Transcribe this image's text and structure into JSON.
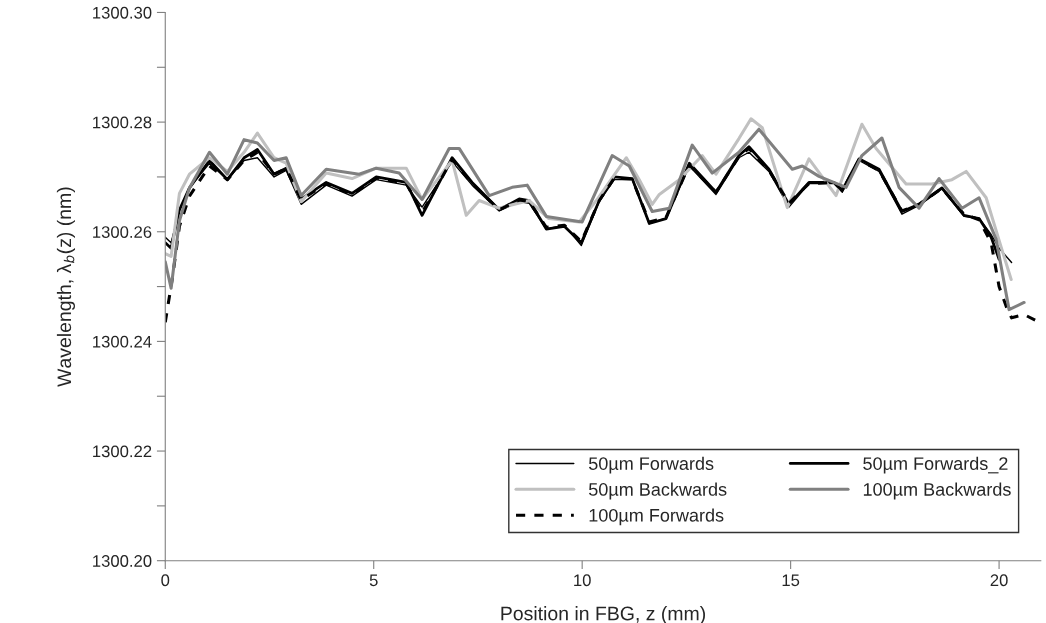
{
  "chart_data": {
    "type": "line",
    "xlabel": "Position in FBG, z (mm)",
    "ylabel": "Wavelength, λ$_{b}$(z) (nm)",
    "xlim": [
      0,
      21
    ],
    "xticks": [
      0,
      5,
      10,
      15,
      20
    ],
    "ylim": [
      1300.2,
      1300.3
    ],
    "yticks": [
      {
        "value": 1300.2,
        "label": "1300.20"
      },
      {
        "value": 1300.21,
        "label": null
      },
      {
        "value": 1300.22,
        "label": "1300.22"
      },
      {
        "value": 1300.23,
        "label": null
      },
      {
        "value": 1300.24,
        "label": "1300.24"
      },
      {
        "value": 1300.25,
        "label": null
      },
      {
        "value": 1300.26,
        "label": "1300.26"
      },
      {
        "value": 1300.27,
        "label": null
      },
      {
        "value": 1300.28,
        "label": "1300.28"
      },
      {
        "value": 1300.29,
        "label": null
      },
      {
        "value": 1300.3,
        "label": "1300.30"
      }
    ],
    "grid": false,
    "legend": "bottom right",
    "marker": "none",
    "series": [
      {
        "name": "50µm Forwards",
        "color": "#000000",
        "line_style": "solid",
        "x": [
          0,
          0.14,
          0.34,
          0.58,
          1.06,
          1.49,
          1.89,
          2.21,
          2.61,
          2.9,
          3.26,
          3.86,
          4.48,
          5.06,
          5.78,
          6.16,
          6.88,
          7.36,
          8.01,
          8.49,
          8.73,
          9.14,
          9.57,
          9.98,
          10.41,
          10.77,
          11.2,
          11.61,
          12.01,
          12.57,
          13.21,
          13.76,
          14.0,
          14.48,
          14.96,
          15.44,
          16.04,
          16.24,
          16.64,
          17.12,
          17.67,
          18.08,
          18.63,
          19.16,
          19.52,
          19.81,
          20.0,
          20.3
        ],
        "values": [
          1300.259,
          1300.258,
          1300.264,
          1300.268,
          1300.2725,
          1300.2695,
          1300.273,
          1300.2735,
          1300.27,
          1300.2712,
          1300.265,
          1300.2685,
          1300.2665,
          1300.2695,
          1300.2685,
          1300.2645,
          1300.2728,
          1300.2685,
          1300.2638,
          1300.2655,
          1300.2652,
          1300.2605,
          1300.2612,
          1300.2575,
          1300.2655,
          1300.2695,
          1300.2695,
          1300.2615,
          1300.2625,
          1300.272,
          1300.2668,
          1300.2735,
          1300.2745,
          1300.271,
          1300.2645,
          1300.2688,
          1300.2688,
          1300.2672,
          1300.273,
          1300.271,
          1300.2632,
          1300.2648,
          1300.2678,
          1300.2628,
          1300.2625,
          1300.2595,
          1300.257,
          1300.2544
        ]
      },
      {
        "name": "50µm Forwards_2",
        "color": "#000000",
        "line_style": "solid",
        "x": [
          0,
          0.14,
          0.34,
          0.58,
          1.06,
          1.49,
          1.89,
          2.21,
          2.61,
          2.9,
          3.26,
          3.86,
          4.48,
          5.06,
          5.78,
          6.16,
          6.88,
          7.36,
          8.01,
          8.49,
          8.73,
          9.14,
          9.57,
          9.98,
          10.41,
          10.77,
          11.2,
          11.61,
          12.01,
          12.57,
          13.21,
          13.76,
          14.0,
          14.48,
          14.96,
          15.44,
          16.04,
          16.24,
          16.64,
          17.12,
          17.67,
          18.08,
          18.63,
          19.16,
          19.52,
          19.81,
          20.0
        ],
        "values": [
          1300.258,
          1300.257,
          1300.264,
          1300.268,
          1300.273,
          1300.2695,
          1300.2735,
          1300.275,
          1300.2705,
          1300.2716,
          1300.266,
          1300.269,
          1300.267,
          1300.27,
          1300.269,
          1300.263,
          1300.2735,
          1300.269,
          1300.264,
          1300.266,
          1300.2657,
          1300.2605,
          1300.261,
          1300.258,
          1300.2657,
          1300.27,
          1300.2697,
          1300.2615,
          1300.2624,
          1300.2725,
          1300.2672,
          1300.2739,
          1300.2755,
          1300.2714,
          1300.265,
          1300.269,
          1300.269,
          1300.2676,
          1300.2733,
          1300.2714,
          1300.2637,
          1300.265,
          1300.268,
          1300.263,
          1300.2624,
          1300.259,
          1300.255
        ]
      },
      {
        "name": "50µm Backwards",
        "color": "#c0c0c0",
        "line_style": "solid",
        "x": [
          0,
          0.14,
          0.34,
          0.58,
          1.06,
          1.49,
          1.89,
          2.21,
          2.61,
          2.9,
          3.26,
          3.86,
          4.48,
          5.06,
          5.78,
          6.16,
          6.88,
          7.22,
          7.53,
          8.0,
          8.73,
          9.2,
          9.93,
          10.34,
          11.06,
          11.37,
          11.68,
          11.85,
          12.33,
          12.88,
          13.21,
          13.76,
          14.05,
          14.32,
          14.92,
          15.44,
          16.09,
          16.71,
          17.05,
          17.77,
          18.39,
          18.87,
          19.21,
          19.69,
          20.07,
          20.29
        ],
        "values": [
          1300.256,
          1300.2555,
          1300.267,
          1300.2705,
          1300.2735,
          1300.271,
          1300.2745,
          1300.278,
          1300.2735,
          1300.2725,
          1300.2655,
          1300.2707,
          1300.2697,
          1300.2716,
          1300.2716,
          1300.2659,
          1300.273,
          1300.263,
          1300.2657,
          1300.2643,
          1300.2657,
          1300.2624,
          1300.2618,
          1300.2657,
          1300.2735,
          1300.2695,
          1300.265,
          1300.2668,
          1300.2695,
          1300.2739,
          1300.2705,
          1300.277,
          1300.2806,
          1300.279,
          1300.2644,
          1300.2733,
          1300.2666,
          1300.2796,
          1300.2752,
          1300.2687,
          1300.2687,
          1300.2695,
          1300.271,
          1300.2662,
          1300.2567,
          1300.2513
        ]
      },
      {
        "name": "100µm Forwards",
        "color": "#000000",
        "line_style": "dashed",
        "x": [
          0,
          0.17,
          0.34,
          0.58,
          1.06,
          1.49,
          1.89,
          2.21,
          2.61,
          2.9,
          3.26,
          3.86,
          4.48,
          5.06,
          5.78,
          6.16,
          6.88,
          7.36,
          8.01,
          8.49,
          8.73,
          9.14,
          9.57,
          9.98,
          10.41,
          10.77,
          11.2,
          11.61,
          12.01,
          12.57,
          13.21,
          13.76,
          14.0,
          14.48,
          14.96,
          15.44,
          16.04,
          16.24,
          16.64,
          17.12,
          17.67,
          18.08,
          18.63,
          19.16,
          19.52,
          19.81,
          20.0,
          20.2,
          20.3,
          20.6,
          20.96
        ],
        "values": [
          1300.2435,
          1300.2515,
          1300.261,
          1300.2665,
          1300.272,
          1300.2695,
          1300.273,
          1300.2745,
          1300.2705,
          1300.2715,
          1300.2658,
          1300.2688,
          1300.2668,
          1300.2698,
          1300.2688,
          1300.2635,
          1300.2732,
          1300.2688,
          1300.264,
          1300.2658,
          1300.2655,
          1300.2608,
          1300.2612,
          1300.2582,
          1300.2657,
          1300.2698,
          1300.2696,
          1300.2618,
          1300.2626,
          1300.2722,
          1300.2672,
          1300.2737,
          1300.2752,
          1300.2712,
          1300.2652,
          1300.2688,
          1300.269,
          1300.2675,
          1300.2731,
          1300.2712,
          1300.2638,
          1300.265,
          1300.2679,
          1300.2632,
          1300.2622,
          1300.258,
          1300.25,
          1300.2458,
          1300.2443,
          1300.2449,
          1300.2435
        ]
      },
      {
        "name": "100µm Backwards",
        "color": "#808080",
        "line_style": "solid",
        "x": [
          0,
          0.14,
          0.34,
          0.58,
          1.06,
          1.49,
          1.89,
          2.21,
          2.61,
          2.9,
          3.26,
          3.86,
          4.65,
          5.06,
          5.61,
          6.16,
          6.81,
          7.05,
          7.77,
          8.32,
          8.68,
          9.14,
          10.0,
          10.72,
          11.13,
          11.68,
          12.09,
          12.64,
          13.12,
          13.76,
          14.24,
          15.04,
          15.28,
          15.68,
          16.33,
          16.71,
          17.19,
          17.6,
          18.08,
          18.56,
          19.11,
          19.52,
          19.93,
          20.24,
          20.6
        ],
        "values": [
          1300.2545,
          1300.2497,
          1300.262,
          1300.268,
          1300.2745,
          1300.2705,
          1300.2768,
          1300.2762,
          1300.273,
          1300.2735,
          1300.2666,
          1300.2714,
          1300.2705,
          1300.2716,
          1300.2707,
          1300.2659,
          1300.2752,
          1300.2752,
          1300.2666,
          1300.2681,
          1300.2685,
          1300.2628,
          1300.2618,
          1300.2739,
          1300.272,
          1300.2637,
          1300.2643,
          1300.2758,
          1300.2707,
          1300.2745,
          1300.2787,
          1300.2714,
          1300.272,
          1300.2701,
          1300.2681,
          1300.2739,
          1300.2771,
          1300.2681,
          1300.2643,
          1300.2697,
          1300.2643,
          1300.2662,
          1300.2586,
          1300.2458,
          1300.2471
        ]
      }
    ]
  }
}
